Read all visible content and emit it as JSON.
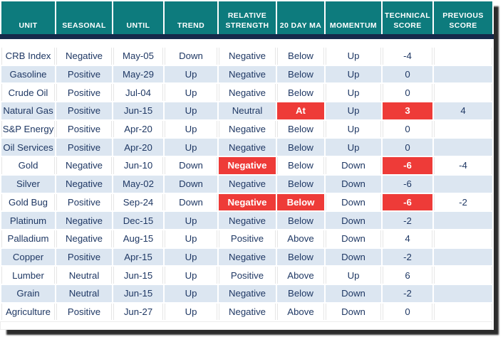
{
  "colors": {
    "header_teal": "#0d7b7d",
    "header_text": "#ffffff",
    "band_navy": "#15294a",
    "row_alt_blue": "#dce6f1",
    "text_navy": "#1f3864",
    "alert_red": "#ee3b38"
  },
  "chart_data": {
    "type": "table",
    "columns": [
      "UNIT",
      "SEASONAL",
      "UNTIL",
      "TREND",
      "RELATIVE STRENGTH",
      "20 DAY MA",
      "MOMENTUM",
      "TECHNICAL SCORE",
      "PREVIOUS SCORE"
    ],
    "highlight_meaning": "red cell = alert condition",
    "rows": [
      {
        "cells": [
          "CRB Index",
          "Negative",
          "May-05",
          "Down",
          "Negative",
          "Below",
          "Up",
          "-4",
          ""
        ],
        "hl": []
      },
      {
        "cells": [
          "Gasoline",
          "Positive",
          "May-29",
          "Up",
          "Negative",
          "Below",
          "Up",
          "0",
          ""
        ],
        "hl": []
      },
      {
        "cells": [
          "Crude Oil",
          "Positive",
          "Jul-04",
          "Up",
          "Negative",
          "Below",
          "Up",
          "0",
          ""
        ],
        "hl": []
      },
      {
        "cells": [
          "Natural Gas",
          "Positive",
          "Jun-15",
          "Up",
          "Neutral",
          "At",
          "Up",
          "3",
          "4"
        ],
        "hl": [
          5,
          7
        ]
      },
      {
        "cells": [
          "S&P Energy",
          "Positive",
          "Apr-20",
          "Up",
          "Negative",
          "Below",
          "Up",
          "0",
          ""
        ],
        "hl": []
      },
      {
        "cells": [
          "Oil Services",
          "Positive",
          "Apr-20",
          "Up",
          "Negative",
          "Below",
          "Up",
          "0",
          ""
        ],
        "hl": []
      },
      {
        "cells": [
          "Gold",
          "Negative",
          "Jun-10",
          "Down",
          "Negative",
          "Below",
          "Down",
          "-6",
          "-4"
        ],
        "hl": [
          4,
          7
        ]
      },
      {
        "cells": [
          "Silver",
          "Negative",
          "May-02",
          "Down",
          "Negative",
          "Below",
          "Down",
          "-6",
          ""
        ],
        "hl": []
      },
      {
        "cells": [
          "Gold Bug",
          "Positive",
          "Sep-24",
          "Down",
          "Negative",
          "Below",
          "Down",
          "-6",
          "-2"
        ],
        "hl": [
          4,
          5,
          7
        ]
      },
      {
        "cells": [
          "Platinum",
          "Negative",
          "Dec-15",
          "Up",
          "Negative",
          "Below",
          "Down",
          "-2",
          ""
        ],
        "hl": []
      },
      {
        "cells": [
          "Palladium",
          "Negative",
          "Aug-15",
          "Up",
          "Positive",
          "Above",
          "Down",
          "4",
          ""
        ],
        "hl": []
      },
      {
        "cells": [
          "Copper",
          "Positive",
          "Apr-15",
          "Up",
          "Negative",
          "Below",
          "Down",
          "-2",
          ""
        ],
        "hl": []
      },
      {
        "cells": [
          "Lumber",
          "Neutral",
          "Jun-15",
          "Up",
          "Positive",
          "Above",
          "Up",
          "6",
          ""
        ],
        "hl": []
      },
      {
        "cells": [
          "Grain",
          "Neutral",
          "Jun-15",
          "Up",
          "Negative",
          "Below",
          "Down",
          "-2",
          ""
        ],
        "hl": []
      },
      {
        "cells": [
          "Agriculture",
          "Positive",
          "Jun-27",
          "Up",
          "Negative",
          "Above",
          "Down",
          "0",
          ""
        ],
        "hl": []
      }
    ]
  }
}
